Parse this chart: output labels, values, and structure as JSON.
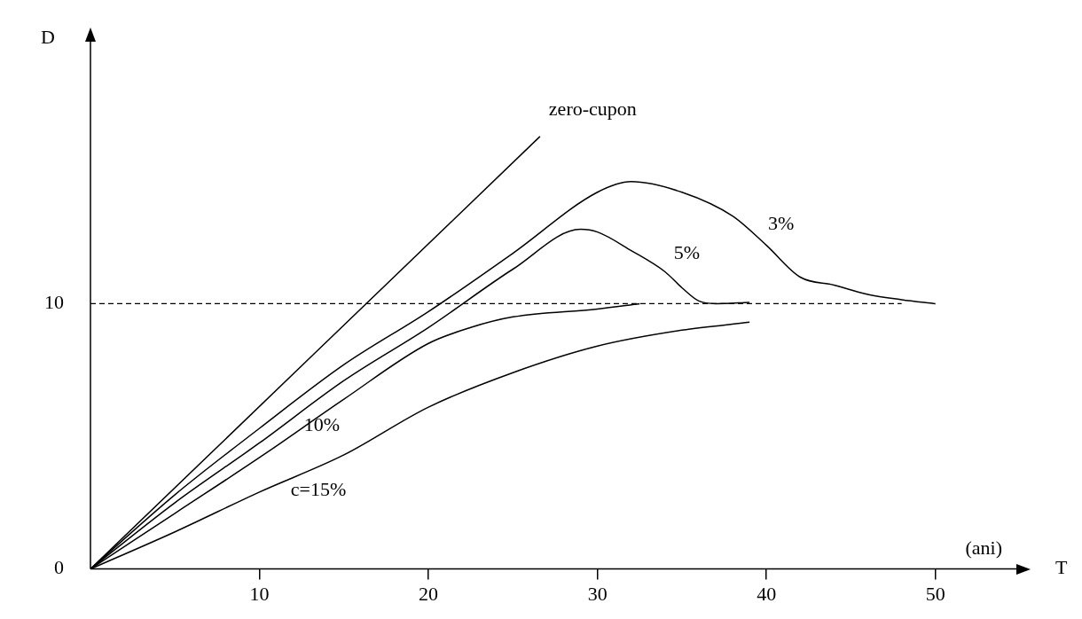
{
  "chart_data": {
    "type": "line",
    "ylabel": "D",
    "xlabel": "T",
    "annotations": [
      "(ani)"
    ],
    "xlim": [
      0,
      55
    ],
    "ylim": [
      0,
      20
    ],
    "xticks": [
      10,
      20,
      30,
      40,
      50
    ],
    "yticks": [
      0,
      10
    ],
    "grid": false,
    "legend": false,
    "marker": "none",
    "line_style": "solid",
    "ref_lines": [
      {
        "axis": "y",
        "value": 10,
        "label": null,
        "color": "#000000",
        "line_style": "dashed"
      }
    ],
    "series": [
      {
        "name": "zero-cupon",
        "color": "#000000",
        "x": [
          0,
          26.6
        ],
        "values": [
          0,
          16.3
        ]
      },
      {
        "name": "3%",
        "color": "#000000",
        "x": [
          0,
          5,
          10,
          15,
          20,
          25,
          30,
          32,
          35,
          38,
          40,
          42,
          44,
          46,
          48,
          50
        ],
        "values": [
          0,
          2.8,
          5.3,
          7.7,
          9.7,
          11.9,
          14.2,
          14.6,
          14.2,
          13.3,
          12.2,
          11.0,
          10.7,
          10.35,
          10.15,
          10.0
        ]
      },
      {
        "name": "5%",
        "color": "#000000",
        "x": [
          0,
          5,
          10,
          15,
          20,
          25,
          29,
          30,
          32,
          34,
          35,
          36,
          37,
          39
        ],
        "values": [
          0,
          2.5,
          4.75,
          7.1,
          9.1,
          11.3,
          12.8,
          12.7,
          12.0,
          11.2,
          10.6,
          10.1,
          10.0,
          10.05
        ]
      },
      {
        "name": "10%",
        "color": "#000000",
        "x": [
          0,
          5,
          10,
          15,
          20,
          22.5,
          25,
          30,
          32.5
        ],
        "values": [
          0,
          2.1,
          4.2,
          6.4,
          8.5,
          9.1,
          9.5,
          9.8,
          10.0
        ]
      },
      {
        "name": "c=15%",
        "color": "#000000",
        "x": [
          0,
          5,
          10,
          15,
          20,
          25,
          30,
          35,
          39
        ],
        "values": [
          0,
          1.4,
          2.9,
          4.3,
          6.1,
          7.4,
          8.4,
          9.0,
          9.3
        ]
      }
    ]
  }
}
